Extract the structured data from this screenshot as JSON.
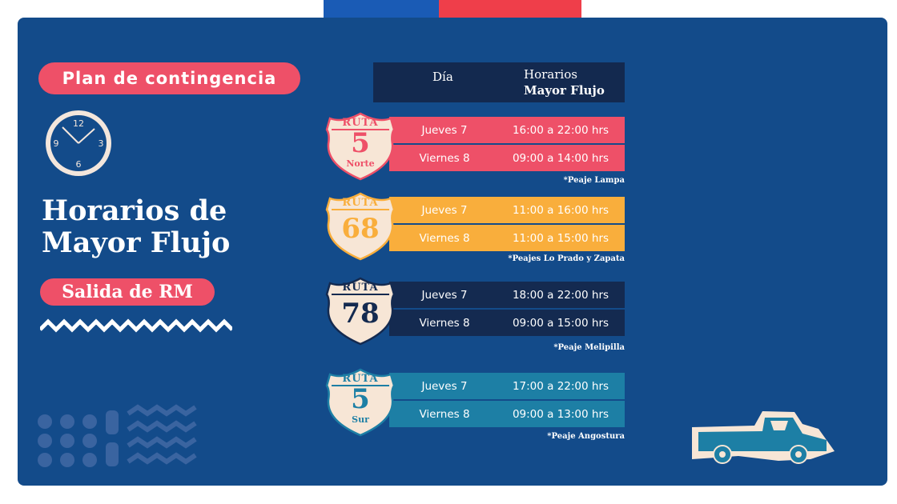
{
  "colors": {
    "panel": "#134b8a",
    "flag_blue": "#1a5bb5",
    "flag_red": "#ef3e4a",
    "pink": "#ee5068",
    "orange": "#f9ae3c",
    "navy": "#142a50",
    "teal": "#1d7fa5",
    "cream": "#f7e6d6"
  },
  "left": {
    "badge": "Plan de contingencia",
    "title_line1": "Horarios de",
    "title_line2": "Mayor Flujo",
    "subtitle": "Salida de RM",
    "clock_icon": "clock-icon",
    "truck_icon": "pickup-truck-icon"
  },
  "table": {
    "col_day": "Día",
    "col_hours_line1": "Horarios",
    "col_hours_line2": "Mayor Flujo"
  },
  "routes": [
    {
      "ruta": "RUTA",
      "number": "5",
      "sub": "Norte",
      "color": "#ee5068",
      "rows": [
        {
          "day": "Jueves  7",
          "hours": "16:00 a 22:00 hrs"
        },
        {
          "day": "Viernes 8",
          "hours": "09:00 a 14:00 hrs"
        }
      ],
      "note": "*Peaje Lampa"
    },
    {
      "ruta": "RUTA",
      "number": "68",
      "sub": "",
      "color": "#f9ae3c",
      "rows": [
        {
          "day": "Jueves  7",
          "hours": "11:00 a 16:00 hrs"
        },
        {
          "day": "Viernes 8",
          "hours": "11:00 a 15:00 hrs"
        }
      ],
      "note": "*Peajes Lo Prado y Zapata"
    },
    {
      "ruta": "RUTA",
      "number": "78",
      "sub": "",
      "color": "#142a50",
      "rows": [
        {
          "day": "Jueves  7",
          "hours": "18:00 a 22:00 hrs"
        },
        {
          "day": "Viernes 8",
          "hours": "09:00 a 15:00 hrs"
        }
      ],
      "note": "*Peaje Melipilla"
    },
    {
      "ruta": "RUTA",
      "number": "5",
      "sub": "Sur",
      "color": "#1d7fa5",
      "rows": [
        {
          "day": "Jueves  7",
          "hours": "17:00 a 22:00 hrs"
        },
        {
          "day": "Viernes 8",
          "hours": "09:00 a 13:00 hrs"
        }
      ],
      "note": "*Peaje Angostura"
    }
  ]
}
